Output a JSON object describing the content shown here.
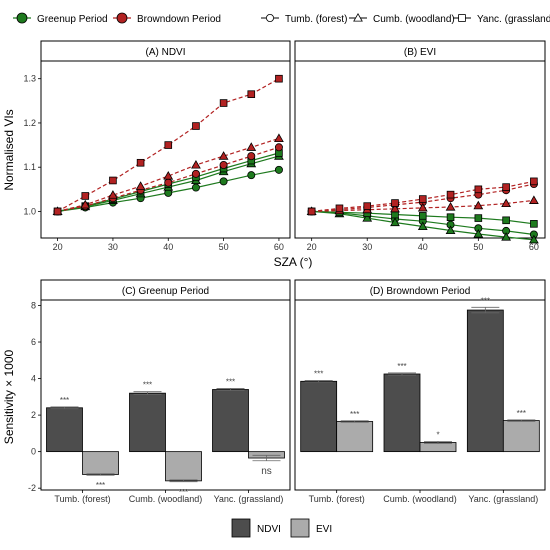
{
  "legend_top": {
    "periods": [
      {
        "label": "Greenup Period",
        "color": "#1e7a1e"
      },
      {
        "label": "Browndown Period",
        "color": "#b22222"
      }
    ],
    "sites": [
      {
        "label": "Tumb. (forest)",
        "shape": "circle"
      },
      {
        "label": "Cumb. (woodland)",
        "shape": "triangle"
      },
      {
        "label": "Yanc. (grassland)",
        "shape": "square"
      }
    ]
  },
  "legend_bottom": [
    {
      "label": "NDVI",
      "color": "#4d4d4d"
    },
    {
      "label": "EVI",
      "color": "#ababab"
    }
  ],
  "axis_titles": {
    "top_y": "Normalised VIs",
    "top_x": "SZA (°)",
    "bottom_y": "Sensitivity × 1000"
  },
  "chart_data": [
    {
      "type": "line",
      "panel": "A",
      "title": "(A) NDVI",
      "x": [
        20,
        25,
        30,
        35,
        40,
        45,
        50,
        55,
        60
      ],
      "xlim": [
        17,
        62
      ],
      "ylim": [
        0.94,
        1.34
      ],
      "xticks": [
        "20",
        "30",
        "40",
        "50",
        "60"
      ],
      "yticks": [
        "1.0",
        "1.1",
        "1.2",
        "1.3"
      ],
      "series": [
        {
          "period": "Greenup Period",
          "site": "Tumb. (forest)",
          "values": [
            1.0,
            1.009,
            1.02,
            1.03,
            1.042,
            1.054,
            1.068,
            1.082,
            1.094
          ]
        },
        {
          "period": "Greenup Period",
          "site": "Cumb. (woodland)",
          "values": [
            1.0,
            1.011,
            1.025,
            1.04,
            1.055,
            1.07,
            1.09,
            1.108,
            1.125
          ]
        },
        {
          "period": "Greenup Period",
          "site": "Yanc. (grassland)",
          "values": [
            1.0,
            1.012,
            1.028,
            1.045,
            1.062,
            1.078,
            1.097,
            1.115,
            1.132
          ]
        },
        {
          "period": "Browndown Period",
          "site": "Tumb. (forest)",
          "values": [
            1.0,
            1.012,
            1.03,
            1.048,
            1.065,
            1.085,
            1.105,
            1.125,
            1.145
          ]
        },
        {
          "period": "Browndown Period",
          "site": "Cumb. (woodland)",
          "values": [
            1.0,
            1.015,
            1.037,
            1.057,
            1.08,
            1.105,
            1.125,
            1.145,
            1.165
          ]
        },
        {
          "period": "Browndown Period",
          "site": "Yanc. (grassland)",
          "values": [
            1.0,
            1.035,
            1.07,
            1.11,
            1.15,
            1.193,
            1.245,
            1.265,
            1.3
          ]
        }
      ]
    },
    {
      "type": "line",
      "panel": "B",
      "title": "(B) EVI",
      "x": [
        20,
        25,
        30,
        35,
        40,
        45,
        50,
        55,
        60
      ],
      "xlim": [
        17,
        62
      ],
      "ylim": [
        0.94,
        1.34
      ],
      "xticks": [
        "20",
        "30",
        "40",
        "50",
        "60"
      ],
      "series": [
        {
          "period": "Greenup Period",
          "site": "Tumb. (forest)",
          "values": [
            1.0,
            0.997,
            0.99,
            0.983,
            0.978,
            0.97,
            0.962,
            0.956,
            0.948
          ]
        },
        {
          "period": "Greenup Period",
          "site": "Cumb. (woodland)",
          "values": [
            1.0,
            0.995,
            0.985,
            0.975,
            0.966,
            0.957,
            0.949,
            0.942,
            0.936
          ]
        },
        {
          "period": "Greenup Period",
          "site": "Yanc. (grassland)",
          "values": [
            1.0,
            0.998,
            0.996,
            0.993,
            0.99,
            0.987,
            0.985,
            0.98,
            0.972
          ]
        },
        {
          "period": "Browndown Period",
          "site": "Tumb. (forest)",
          "values": [
            1.0,
            1.004,
            1.009,
            1.015,
            1.021,
            1.03,
            1.038,
            1.048,
            1.062
          ]
        },
        {
          "period": "Browndown Period",
          "site": "Cumb. (woodland)",
          "values": [
            1.0,
            1.002,
            1.004,
            1.006,
            1.008,
            1.01,
            1.013,
            1.018,
            1.025
          ]
        },
        {
          "period": "Browndown Period",
          "site": "Yanc. (grassland)",
          "values": [
            1.0,
            1.007,
            1.012,
            1.019,
            1.028,
            1.038,
            1.05,
            1.055,
            1.068
          ]
        }
      ]
    },
    {
      "type": "bar",
      "panel": "C",
      "title": "(C) Greenup Period",
      "categories": [
        "Tumb. (forest)",
        "Cumb. (woodland)",
        "Yanc. (grassland)"
      ],
      "ylim": [
        -2.1,
        8.3
      ],
      "yticks": [
        "-2",
        "0",
        "2",
        "4",
        "6",
        "8"
      ],
      "series": [
        {
          "name": "NDVI",
          "values": [
            2.4,
            3.2,
            3.4
          ],
          "errors": [
            0.05,
            0.08,
            0.06
          ],
          "labels": [
            "***",
            "***",
            "***"
          ]
        },
        {
          "name": "EVI",
          "values": [
            -1.25,
            -1.6,
            -0.35
          ],
          "errors": [
            0.04,
            0.05,
            0.15
          ],
          "labels": [
            "***",
            "***",
            "ns"
          ]
        }
      ]
    },
    {
      "type": "bar",
      "panel": "D",
      "title": "(D) Browndown Period",
      "categories": [
        "Tumb. (forest)",
        "Cumb. (woodland)",
        "Yanc. (grassland)"
      ],
      "ylim": [
        -2.1,
        8.3
      ],
      "series": [
        {
          "name": "NDVI",
          "values": [
            3.85,
            4.25,
            7.75
          ],
          "errors": [
            0.04,
            0.06,
            0.15
          ],
          "labels": [
            "***",
            "***",
            "***"
          ]
        },
        {
          "name": "EVI",
          "values": [
            1.65,
            0.5,
            1.7
          ],
          "errors": [
            0.04,
            0.06,
            0.04
          ],
          "labels": [
            "***",
            "*",
            "***"
          ]
        }
      ]
    }
  ]
}
